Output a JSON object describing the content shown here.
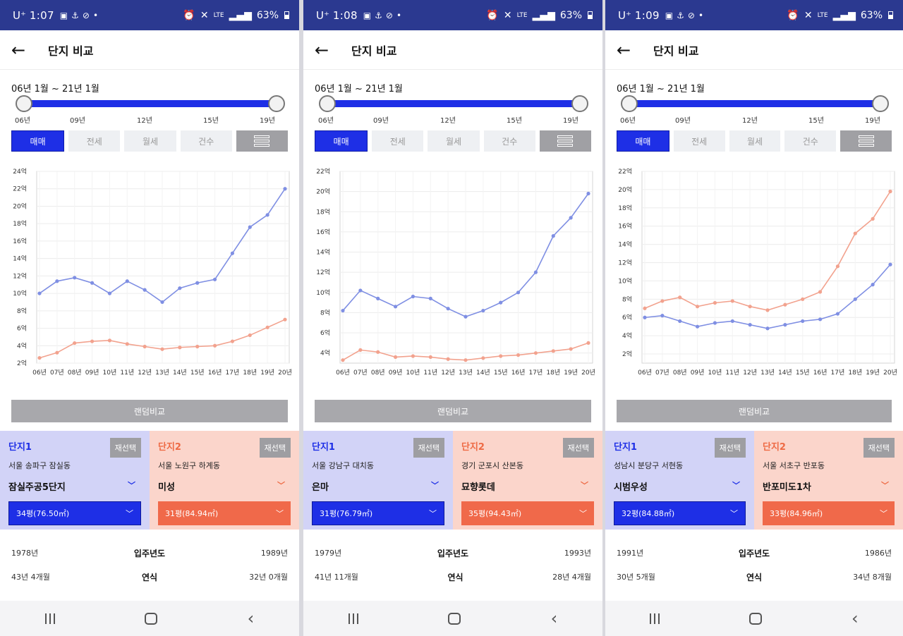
{
  "panels": [
    {
      "status": {
        "time": "1:07",
        "carrier": "U⁺",
        "net": "LTE",
        "battery": "63%"
      },
      "header": {
        "title": "단지 비교"
      },
      "range": "06년 1월 ~ 21년 1월",
      "ticks": [
        "06년",
        "09년",
        "12년",
        "15년",
        "19년"
      ],
      "tabs": [
        "매매",
        "전세",
        "월세",
        "건수"
      ],
      "random": "랜덤비교",
      "c1": {
        "label": "단지1",
        "reselect": "재선택",
        "loc": "서울 송파구 잠실동",
        "name": "잠실주공5단지",
        "size": "34평(76.50㎡)"
      },
      "c2": {
        "label": "단지2",
        "reselect": "재선택",
        "loc": "서울 노원구 하계동",
        "name": "미성",
        "size": "31평(84.94㎡)"
      },
      "info": [
        [
          "1978년",
          "입주년도",
          "1989년"
        ],
        [
          "43년 4개월",
          "연식",
          "32년 0개월"
        ]
      ]
    },
    {
      "status": {
        "time": "1:08",
        "carrier": "U⁺",
        "net": "LTE",
        "battery": "63%"
      },
      "header": {
        "title": "단지 비교"
      },
      "range": "06년 1월 ~ 21년 1월",
      "ticks": [
        "06년",
        "09년",
        "12년",
        "15년",
        "19년"
      ],
      "tabs": [
        "매매",
        "전세",
        "월세",
        "건수"
      ],
      "random": "랜덤비교",
      "c1": {
        "label": "단지1",
        "reselect": "재선택",
        "loc": "서울 강남구 대치동",
        "name": "은마",
        "size": "31평(76.79㎡)"
      },
      "c2": {
        "label": "단지2",
        "reselect": "재선택",
        "loc": "경기 군포시 산본동",
        "name": "묘향롯데",
        "size": "35평(94.43㎡)"
      },
      "info": [
        [
          "1979년",
          "입주년도",
          "1993년"
        ],
        [
          "41년 11개월",
          "연식",
          "28년 4개월"
        ]
      ]
    },
    {
      "status": {
        "time": "1:09",
        "carrier": "U⁺",
        "net": "LTE",
        "battery": "63%"
      },
      "header": {
        "title": "단지 비교"
      },
      "range": "06년 1월 ~ 21년 1월",
      "ticks": [
        "06년",
        "09년",
        "12년",
        "15년",
        "19년"
      ],
      "tabs": [
        "매매",
        "전세",
        "월세",
        "건수"
      ],
      "random": "랜덤비교",
      "c1": {
        "label": "단지1",
        "reselect": "재선택",
        "loc": "성남시 분당구 서현동",
        "name": "시범우성",
        "size": "32평(84.88㎡)"
      },
      "c2": {
        "label": "단지2",
        "reselect": "재선택",
        "loc": "서울 서초구 반포동",
        "name": "반포미도1차",
        "size": "33평(84.96㎡)"
      },
      "info": [
        [
          "1991년",
          "입주년도",
          "1986년"
        ],
        [
          "30년 5개월",
          "연식",
          "34년 8개월"
        ]
      ]
    }
  ],
  "colors": {
    "blue": "#1e2fe6",
    "blue_series": "#7f8fe3",
    "orange_series": "#f2a28e",
    "header": "#2b3990"
  },
  "chart_data": [
    {
      "type": "line",
      "x": [
        "06년",
        "07년",
        "08년",
        "09년",
        "10년",
        "11년",
        "12년",
        "13년",
        "14년",
        "15년",
        "16년",
        "17년",
        "18년",
        "19년",
        "20년"
      ],
      "ylim": [
        2,
        24
      ],
      "yticks": [
        "2억",
        "4억",
        "6억",
        "8억",
        "10억",
        "12억",
        "14억",
        "16억",
        "18억",
        "20억",
        "22억",
        "24억"
      ],
      "series": [
        {
          "name": "잠실주공5단지",
          "color": "#7f8fe3",
          "values": [
            10.0,
            11.4,
            11.8,
            11.2,
            10.0,
            11.4,
            10.4,
            9.0,
            10.6,
            11.2,
            11.6,
            14.6,
            17.6,
            19.0,
            22.0
          ]
        },
        {
          "name": "미성",
          "color": "#f2a28e",
          "values": [
            2.6,
            3.2,
            4.3,
            4.5,
            4.6,
            4.2,
            3.9,
            3.6,
            3.8,
            3.9,
            4.0,
            4.5,
            5.2,
            6.1,
            7.0
          ]
        }
      ]
    },
    {
      "type": "line",
      "x": [
        "06년",
        "07년",
        "08년",
        "09년",
        "10년",
        "11년",
        "12년",
        "13년",
        "14년",
        "15년",
        "16년",
        "17년",
        "18년",
        "19년",
        "20년"
      ],
      "ylim": [
        3,
        22
      ],
      "yticks": [
        "4억",
        "6억",
        "8억",
        "10억",
        "12억",
        "14억",
        "16억",
        "18억",
        "20억",
        "22억"
      ],
      "series": [
        {
          "name": "은마",
          "color": "#7f8fe3",
          "values": [
            8.2,
            10.2,
            9.4,
            8.6,
            9.6,
            9.4,
            8.4,
            7.6,
            8.2,
            9.0,
            10.0,
            12.0,
            15.6,
            17.4,
            19.8
          ]
        },
        {
          "name": "묘향롯데",
          "color": "#f2a28e",
          "values": [
            3.3,
            4.3,
            4.1,
            3.6,
            3.7,
            3.6,
            3.4,
            3.3,
            3.5,
            3.7,
            3.8,
            4.0,
            4.2,
            4.4,
            5.0
          ]
        }
      ]
    },
    {
      "type": "line",
      "x": [
        "06년",
        "07년",
        "08년",
        "09년",
        "10년",
        "11년",
        "12년",
        "13년",
        "14년",
        "15년",
        "16년",
        "17년",
        "18년",
        "19년",
        "20년"
      ],
      "ylim": [
        1,
        22
      ],
      "yticks": [
        "2억",
        "4억",
        "6억",
        "8억",
        "10억",
        "12억",
        "14억",
        "16억",
        "18억",
        "20억",
        "22억"
      ],
      "series": [
        {
          "name": "시범우성",
          "color": "#7f8fe3",
          "values": [
            6.0,
            6.2,
            5.6,
            5.0,
            5.4,
            5.6,
            5.2,
            4.8,
            5.2,
            5.6,
            5.8,
            6.4,
            8.0,
            9.6,
            11.8
          ]
        },
        {
          "name": "반포미도1차",
          "color": "#f2a28e",
          "values": [
            7.0,
            7.8,
            8.2,
            7.2,
            7.6,
            7.8,
            7.2,
            6.8,
            7.4,
            8.0,
            8.8,
            11.6,
            15.2,
            16.8,
            19.8
          ]
        }
      ]
    }
  ]
}
